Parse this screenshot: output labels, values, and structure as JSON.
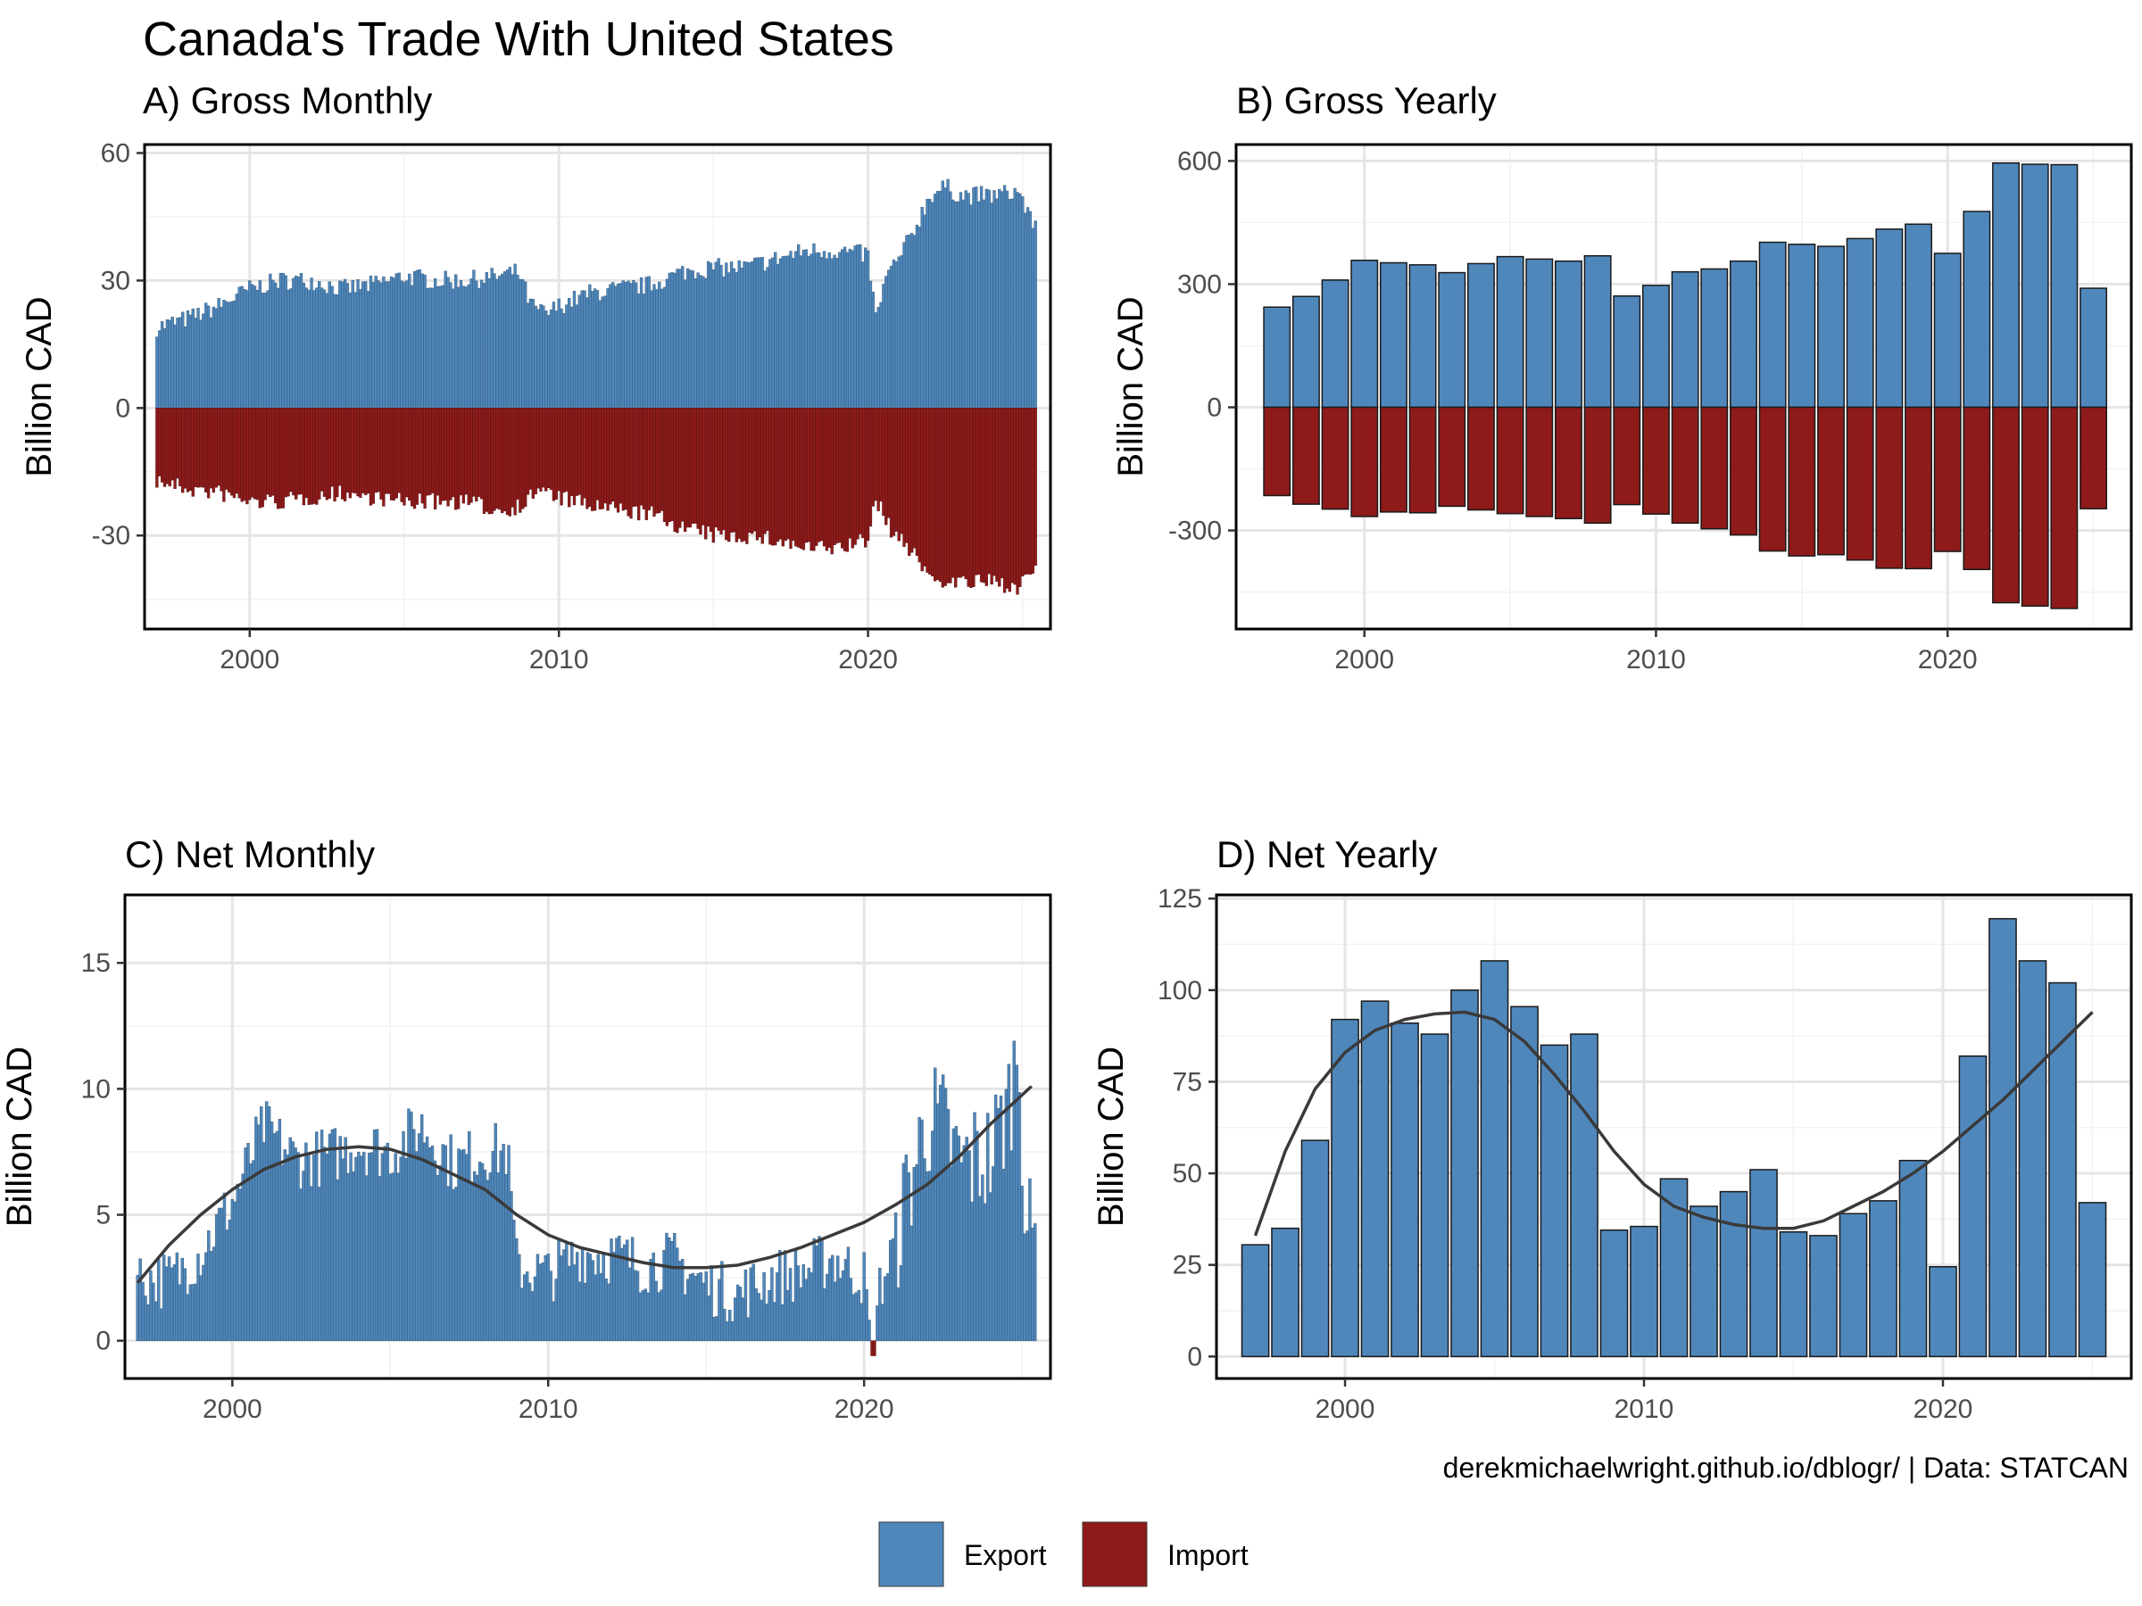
{
  "title": "Canada's Trade With United States",
  "caption": "derekmichaelwright.github.io/dblogr/ | Data: STATCAN",
  "colors": {
    "export": "#4f87bb",
    "import": "#8e1a1a",
    "smooth": "#3a3a3a"
  },
  "legend": {
    "position": "bottom",
    "items": [
      {
        "label": "Export",
        "color": "#4f87bb"
      },
      {
        "label": "Import",
        "color": "#8e1a1a"
      }
    ]
  },
  "chart_data": [
    {
      "id": "A",
      "title": "A) Gross Monthly",
      "type": "bar",
      "ylabel": "Billion CAD",
      "xlim": [
        1996.6,
        2025.9
      ],
      "xticks": [
        2000,
        2010,
        2020
      ],
      "ylim": [
        -52,
        62
      ],
      "yticks": [
        -30,
        0,
        30,
        60
      ],
      "grid": true,
      "x_start": 1997.0,
      "x_step": 0.08333,
      "export_anchors": [
        [
          1997.0,
          19
        ],
        [
          1998.0,
          21
        ],
        [
          1999.0,
          24
        ],
        [
          2000.0,
          28
        ],
        [
          2001.0,
          30
        ],
        [
          2002.0,
          30
        ],
        [
          2003.0,
          28
        ],
        [
          2004.0,
          29
        ],
        [
          2005.0,
          31
        ],
        [
          2006.0,
          30
        ],
        [
          2007.0,
          30
        ],
        [
          2008.0,
          31
        ],
        [
          2008.7,
          32
        ],
        [
          2009.1,
          24
        ],
        [
          2009.6,
          22
        ],
        [
          2010.0,
          24
        ],
        [
          2011.0,
          27
        ],
        [
          2012.0,
          28
        ],
        [
          2013.0,
          29
        ],
        [
          2014.0,
          32
        ],
        [
          2015.0,
          33
        ],
        [
          2016.0,
          33
        ],
        [
          2017.0,
          35
        ],
        [
          2018.0,
          37
        ],
        [
          2019.0,
          37
        ],
        [
          2020.0,
          36
        ],
        [
          2020.25,
          21
        ],
        [
          2020.6,
          31
        ],
        [
          2021.0,
          35
        ],
        [
          2021.5,
          42
        ],
        [
          2022.0,
          50
        ],
        [
          2022.5,
          52
        ],
        [
          2023.0,
          50
        ],
        [
          2024.0,
          50
        ],
        [
          2024.9,
          51
        ],
        [
          2025.25,
          44
        ]
      ],
      "import_anchors": [
        [
          1997.0,
          -17
        ],
        [
          1998.0,
          -19
        ],
        [
          1999.0,
          -20
        ],
        [
          2000.0,
          -22
        ],
        [
          2001.0,
          -22
        ],
        [
          2002.0,
          -21
        ],
        [
          2003.0,
          -20
        ],
        [
          2004.0,
          -21
        ],
        [
          2005.0,
          -22
        ],
        [
          2006.0,
          -22
        ],
        [
          2007.0,
          -22
        ],
        [
          2008.0,
          -24
        ],
        [
          2008.8,
          -23
        ],
        [
          2009.3,
          -19
        ],
        [
          2010.0,
          -21
        ],
        [
          2011.0,
          -23
        ],
        [
          2012.0,
          -24
        ],
        [
          2013.0,
          -25
        ],
        [
          2014.0,
          -28
        ],
        [
          2015.0,
          -30
        ],
        [
          2016.0,
          -30
        ],
        [
          2017.0,
          -31
        ],
        [
          2018.0,
          -33
        ],
        [
          2019.0,
          -33
        ],
        [
          2020.0,
          -31
        ],
        [
          2020.25,
          -21
        ],
        [
          2020.6,
          -27
        ],
        [
          2021.0,
          -31
        ],
        [
          2021.5,
          -34
        ],
        [
          2022.0,
          -40
        ],
        [
          2023.0,
          -41
        ],
        [
          2024.0,
          -41
        ],
        [
          2024.9,
          -42
        ],
        [
          2025.25,
          -39
        ]
      ]
    },
    {
      "id": "B",
      "title": "B) Gross Yearly",
      "type": "bar",
      "ylabel": "Billion CAD",
      "xlim": [
        1995.6,
        2026.3
      ],
      "xticks": [
        2000,
        2010,
        2020
      ],
      "ylim": [
        -540,
        640
      ],
      "yticks": [
        -300,
        0,
        300,
        600
      ],
      "grid": true,
      "years": [
        1997,
        1998,
        1999,
        2000,
        2001,
        2002,
        2003,
        2004,
        2005,
        2006,
        2007,
        2008,
        2009,
        2010,
        2011,
        2012,
        2013,
        2014,
        2015,
        2016,
        2017,
        2018,
        2019,
        2020,
        2021,
        2022,
        2023,
        2024,
        2025
      ],
      "export": [
        244,
        270,
        310,
        358,
        352,
        347,
        328,
        350,
        367,
        361,
        356,
        369,
        271,
        297,
        330,
        337,
        356,
        402,
        397,
        392,
        411,
        434,
        446,
        375,
        477,
        595,
        592,
        591,
        290
      ],
      "import": [
        -215,
        -236,
        -248,
        -266,
        -255,
        -257,
        -241,
        -250,
        -259,
        -266,
        -271,
        -282,
        -237,
        -260,
        -282,
        -296,
        -311,
        -350,
        -362,
        -359,
        -372,
        -392,
        -393,
        -351,
        -395,
        -476,
        -484,
        -490,
        -247
      ]
    },
    {
      "id": "C",
      "title": "C) Net Monthly",
      "type": "bar",
      "ylabel": "Billion CAD",
      "xlim": [
        1996.6,
        2025.9
      ],
      "xticks": [
        2000,
        2010,
        2020
      ],
      "ylim": [
        -1.5,
        17.7
      ],
      "yticks": [
        0,
        5,
        10,
        15
      ],
      "grid": true,
      "x_start": 1997.0,
      "x_step": 0.08333,
      "net_anchors": [
        [
          1997.0,
          2.5
        ],
        [
          1998.0,
          2.4
        ],
        [
          1999.0,
          3.5
        ],
        [
          2000.0,
          5.5
        ],
        [
          2000.5,
          7.0
        ],
        [
          2001.0,
          8.5
        ],
        [
          2002.0,
          7.2
        ],
        [
          2003.0,
          7.3
        ],
        [
          2004.0,
          7.8
        ],
        [
          2005.0,
          7.5
        ],
        [
          2006.0,
          8.5
        ],
        [
          2007.0,
          7.0
        ],
        [
          2008.0,
          7.5
        ],
        [
          2008.7,
          7.5
        ],
        [
          2009.0,
          3.0
        ],
        [
          2010.0,
          2.6
        ],
        [
          2011.0,
          3.5
        ],
        [
          2012.0,
          3.4
        ],
        [
          2013.0,
          3.0
        ],
        [
          2014.0,
          3.2
        ],
        [
          2015.0,
          2.2
        ],
        [
          2016.0,
          1.8
        ],
        [
          2017.0,
          2.5
        ],
        [
          2018.0,
          2.7
        ],
        [
          2019.0,
          3.3
        ],
        [
          2020.0,
          2.5
        ],
        [
          2020.25,
          -0.6
        ],
        [
          2020.5,
          2.0
        ],
        [
          2021.0,
          4.0
        ],
        [
          2021.5,
          6.5
        ],
        [
          2022.0,
          8.8
        ],
        [
          2022.5,
          8.5
        ],
        [
          2023.0,
          7.0
        ],
        [
          2024.0,
          7.3
        ],
        [
          2024.6,
          9.5
        ],
        [
          2024.9,
          12.0
        ],
        [
          2025.1,
          5.0
        ],
        [
          2025.25,
          4.0
        ]
      ],
      "smooth": [
        [
          1997.0,
          2.3
        ],
        [
          1998.0,
          3.8
        ],
        [
          1999.0,
          5.0
        ],
        [
          2000.0,
          6.0
        ],
        [
          2001.0,
          6.8
        ],
        [
          2002.0,
          7.3
        ],
        [
          2003.0,
          7.6
        ],
        [
          2004.0,
          7.7
        ],
        [
          2005.0,
          7.6
        ],
        [
          2006.0,
          7.2
        ],
        [
          2007.0,
          6.6
        ],
        [
          2008.0,
          6.0
        ],
        [
          2009.0,
          5.0
        ],
        [
          2010.0,
          4.2
        ],
        [
          2011.0,
          3.7
        ],
        [
          2012.0,
          3.4
        ],
        [
          2013.0,
          3.1
        ],
        [
          2014.0,
          2.9
        ],
        [
          2015.0,
          2.9
        ],
        [
          2016.0,
          3.0
        ],
        [
          2017.0,
          3.3
        ],
        [
          2018.0,
          3.7
        ],
        [
          2019.0,
          4.2
        ],
        [
          2020.0,
          4.7
        ],
        [
          2021.0,
          5.4
        ],
        [
          2022.0,
          6.2
        ],
        [
          2023.0,
          7.3
        ],
        [
          2024.0,
          8.6
        ],
        [
          2025.3,
          10.1
        ]
      ]
    },
    {
      "id": "D",
      "title": "D) Net Yearly",
      "type": "bar",
      "ylabel": "Billion CAD",
      "xlim": [
        1995.7,
        2026.3
      ],
      "xticks": [
        2000,
        2010,
        2020
      ],
      "ylim": [
        -6,
        126
      ],
      "yticks": [
        0,
        25,
        50,
        75,
        100,
        125
      ],
      "grid": true,
      "years": [
        1997,
        1998,
        1999,
        2000,
        2001,
        2002,
        2003,
        2004,
        2005,
        2006,
        2007,
        2008,
        2009,
        2010,
        2011,
        2012,
        2013,
        2014,
        2015,
        2016,
        2017,
        2018,
        2019,
        2020,
        2021,
        2022,
        2023,
        2024,
        2025
      ],
      "net": [
        30.5,
        35,
        59,
        92,
        97,
        91,
        88,
        100,
        108,
        95.5,
        85,
        88,
        34.5,
        35.5,
        48.5,
        41,
        45,
        51,
        34,
        33,
        39,
        42.5,
        53.5,
        24.5,
        82,
        119.5,
        108,
        102,
        42
      ],
      "smooth": [
        [
          1997.0,
          33
        ],
        [
          1998.0,
          56
        ],
        [
          1999.0,
          73
        ],
        [
          2000.0,
          83
        ],
        [
          2001.0,
          89
        ],
        [
          2002.0,
          92
        ],
        [
          2003.0,
          93.5
        ],
        [
          2004.0,
          94
        ],
        [
          2005.0,
          92
        ],
        [
          2006.0,
          86
        ],
        [
          2007.0,
          77
        ],
        [
          2008.0,
          67
        ],
        [
          2009.0,
          56
        ],
        [
          2010.0,
          47
        ],
        [
          2011.0,
          41
        ],
        [
          2012.0,
          38
        ],
        [
          2013.0,
          36
        ],
        [
          2014.0,
          35
        ],
        [
          2015.0,
          35
        ],
        [
          2016.0,
          37
        ],
        [
          2017.0,
          41
        ],
        [
          2018.0,
          45
        ],
        [
          2019.0,
          50
        ],
        [
          2020.0,
          56
        ],
        [
          2021.0,
          63
        ],
        [
          2022.0,
          70
        ],
        [
          2023.0,
          78
        ],
        [
          2024.0,
          86
        ],
        [
          2025.0,
          94
        ]
      ]
    }
  ]
}
